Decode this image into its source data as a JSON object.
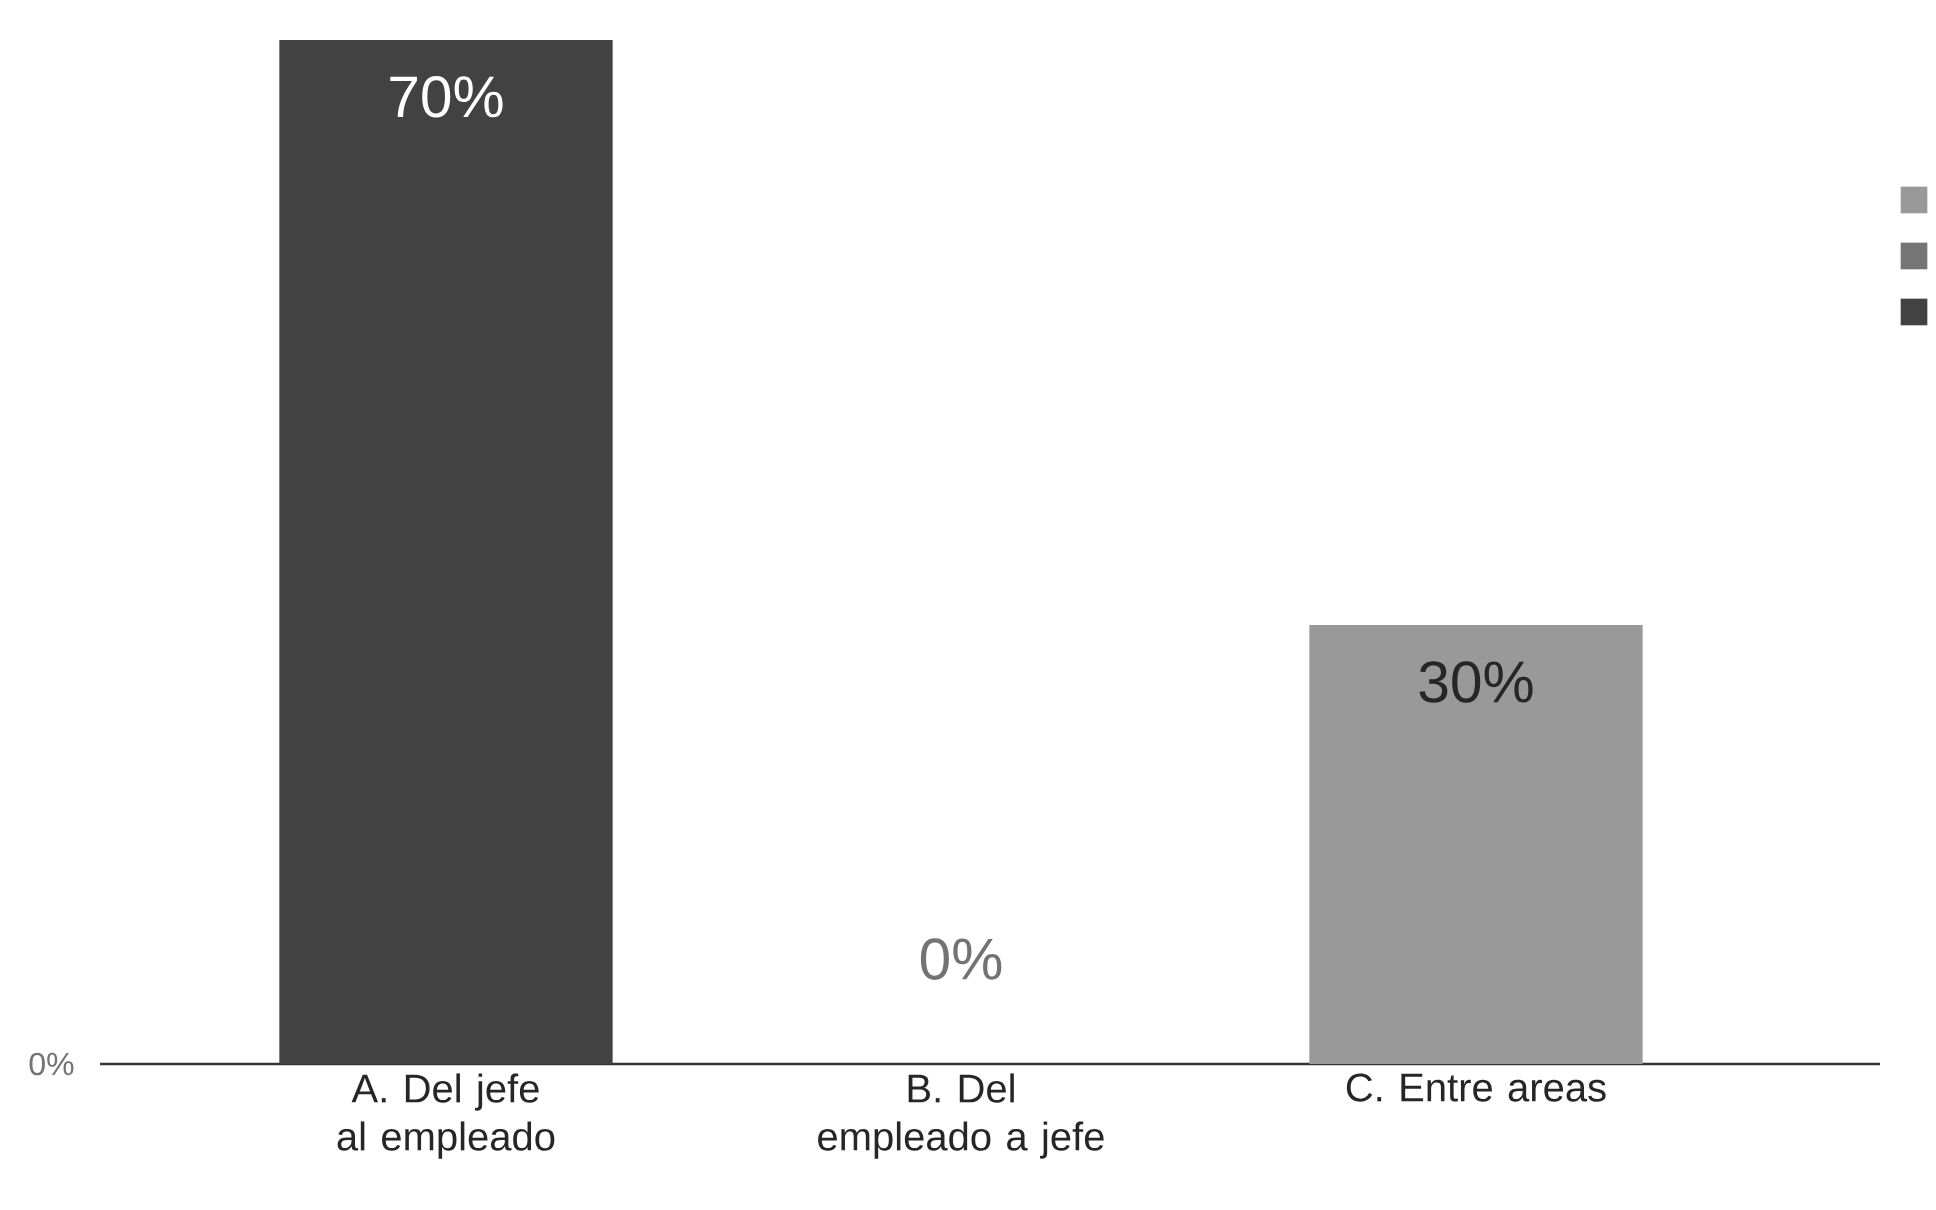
{
  "chart_data": {
    "type": "bar",
    "categories": [
      "A. Del jefe al empleado",
      "B. Del empleado a jefe",
      "C. Entre areas"
    ],
    "values": [
      70,
      0,
      30
    ],
    "colors": [
      "#424242",
      "#757575",
      "#999999"
    ],
    "value_labels": [
      "70%",
      "0%",
      "30%"
    ],
    "annotations": [
      "0%"
    ]
  }
}
